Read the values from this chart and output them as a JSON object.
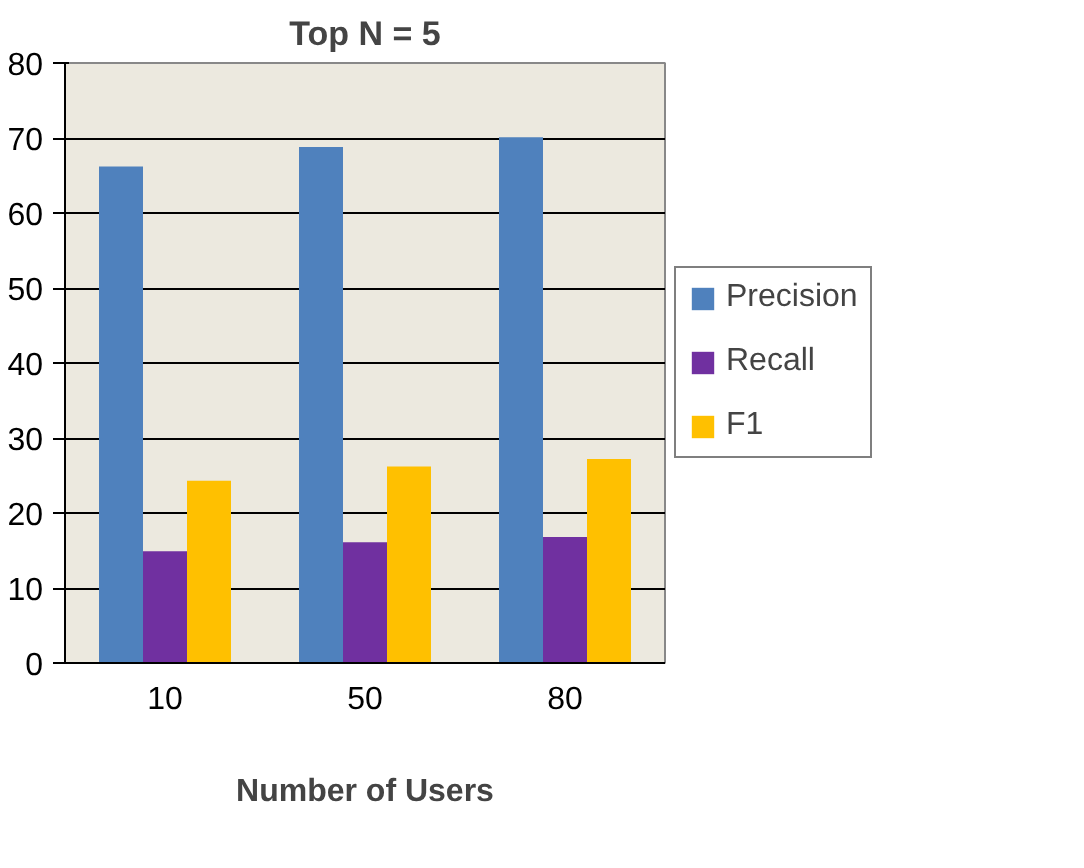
{
  "chart_data": {
    "type": "bar",
    "title": "Top N = 5",
    "xlabel": "Number of Users",
    "categories": [
      "10",
      "50",
      "80"
    ],
    "series": [
      {
        "name": "Precision",
        "color": "#4f81bd",
        "values": [
          66.2,
          68.8,
          70.1
        ]
      },
      {
        "name": "Recall",
        "color": "#7030a0",
        "values": [
          14.9,
          16.1,
          16.8
        ]
      },
      {
        "name": "F1",
        "color": "#ffc000",
        "values": [
          24.3,
          26.2,
          27.2
        ]
      }
    ],
    "ylim": [
      0,
      80
    ],
    "yticks": [
      0,
      10,
      20,
      30,
      40,
      50,
      60,
      70,
      80
    ],
    "grid": "y",
    "legend": "right"
  }
}
